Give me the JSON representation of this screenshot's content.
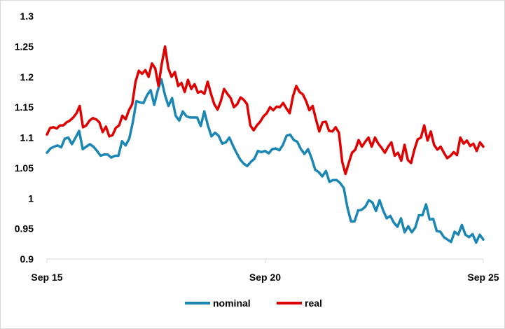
{
  "chart_data": {
    "type": "line",
    "title": "",
    "xlabel": "",
    "ylabel": "",
    "ylim": [
      0.9,
      1.3
    ],
    "yticks": [
      "0.9",
      "0.95",
      "1",
      "1.05",
      "1.1",
      "1.15",
      "1.2",
      "1.25",
      "1.3"
    ],
    "xticks": [
      "Sep 15",
      "Sep 20",
      "Sep 25"
    ],
    "x_start": "2015-09",
    "x_end": "2025-09",
    "grid": false,
    "legend_position": "bottom",
    "series": [
      {
        "name": "nominal",
        "color": "#1a86b4",
        "values": [
          1.075,
          1.082,
          1.085,
          1.087,
          1.084,
          1.098,
          1.1,
          1.089,
          1.1,
          1.111,
          1.081,
          1.085,
          1.089,
          1.085,
          1.078,
          1.07,
          1.072,
          1.072,
          1.067,
          1.07,
          1.07,
          1.094,
          1.087,
          1.098,
          1.125,
          1.16,
          1.158,
          1.157,
          1.17,
          1.178,
          1.154,
          1.178,
          1.196,
          1.17,
          1.152,
          1.165,
          1.136,
          1.128,
          1.143,
          1.135,
          1.133,
          1.133,
          1.133,
          1.119,
          1.143,
          1.12,
          1.102,
          1.108,
          1.103,
          1.09,
          1.092,
          1.1,
          1.087,
          1.075,
          1.064,
          1.057,
          1.053,
          1.06,
          1.065,
          1.078,
          1.076,
          1.078,
          1.074,
          1.081,
          1.082,
          1.079,
          1.088,
          1.103,
          1.105,
          1.096,
          1.093,
          1.081,
          1.073,
          1.081,
          1.066,
          1.047,
          1.043,
          1.036,
          1.045,
          1.027,
          1.03,
          1.03,
          1.025,
          1.017,
          0.985,
          0.962,
          0.962,
          0.98,
          0.981,
          0.986,
          0.997,
          0.993,
          0.979,
          0.997,
          0.98,
          0.967,
          0.971,
          0.96,
          0.953,
          0.967,
          0.944,
          0.954,
          0.944,
          0.952,
          0.972,
          0.972,
          0.99,
          0.965,
          0.966,
          0.946,
          0.945,
          0.936,
          0.932,
          0.928,
          0.945,
          0.94,
          0.956,
          0.94,
          0.936,
          0.941,
          0.927,
          0.94,
          0.932
        ]
      },
      {
        "name": "real",
        "color": "#e00000",
        "values": [
          1.105,
          1.116,
          1.117,
          1.115,
          1.12,
          1.12,
          1.125,
          1.128,
          1.133,
          1.14,
          1.152,
          1.117,
          1.12,
          1.128,
          1.132,
          1.13,
          1.125,
          1.109,
          1.118,
          1.102,
          1.104,
          1.116,
          1.12,
          1.136,
          1.13,
          1.145,
          1.155,
          1.192,
          1.21,
          1.205,
          1.211,
          1.2,
          1.222,
          1.214,
          1.185,
          1.221,
          1.25,
          1.214,
          1.2,
          1.208,
          1.185,
          1.19,
          1.175,
          1.195,
          1.18,
          1.188,
          1.174,
          1.176,
          1.172,
          1.192,
          1.172,
          1.155,
          1.146,
          1.16,
          1.18,
          1.172,
          1.165,
          1.15,
          1.155,
          1.166,
          1.162,
          1.155,
          1.12,
          1.112,
          1.12,
          1.126,
          1.135,
          1.14,
          1.15,
          1.145,
          1.151,
          1.15,
          1.157,
          1.148,
          1.14,
          1.168,
          1.185,
          1.175,
          1.171,
          1.16,
          1.145,
          1.152,
          1.13,
          1.11,
          1.125,
          1.126,
          1.111,
          1.11,
          1.117,
          1.108,
          1.06,
          1.04,
          1.058,
          1.075,
          1.08,
          1.096,
          1.085,
          1.093,
          1.1,
          1.085,
          1.1,
          1.09,
          1.083,
          1.075,
          1.085,
          1.092,
          1.07,
          1.075,
          1.062,
          1.088,
          1.063,
          1.058,
          1.08,
          1.097,
          1.1,
          1.12,
          1.095,
          1.11,
          1.088,
          1.08,
          1.085,
          1.075,
          1.066,
          1.07,
          1.076,
          1.071,
          1.1,
          1.09,
          1.095,
          1.086,
          1.09,
          1.078,
          1.092,
          1.085
        ]
      }
    ]
  }
}
